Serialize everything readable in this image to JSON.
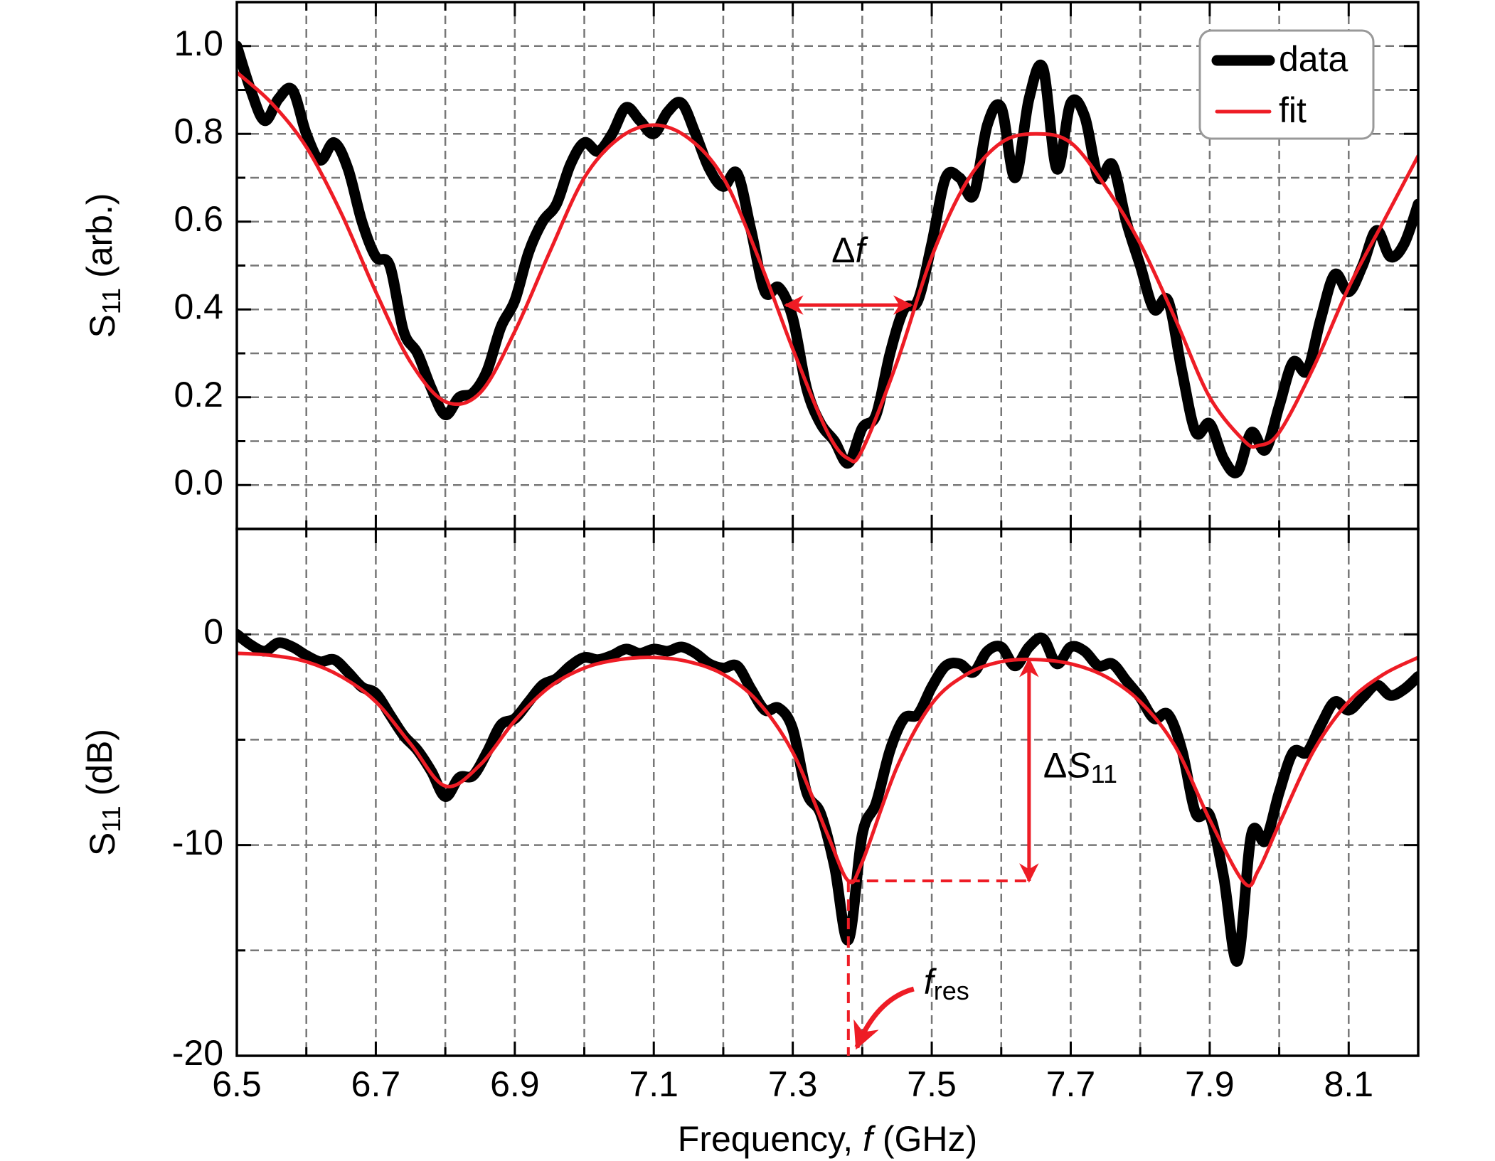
{
  "chart_data": [
    {
      "type": "line",
      "ylabel": [
        {
          "text": "S"
        },
        {
          "text": "11",
          "sub": true
        },
        {
          "text": " (arb.)"
        }
      ],
      "xlim": [
        6.5,
        8.2
      ],
      "xticks": [
        6.5,
        6.7,
        6.9,
        7.1,
        7.3,
        7.5,
        7.7,
        7.9,
        8.1
      ],
      "xminor": [
        6.6,
        6.8,
        7.0,
        7.2,
        7.4,
        7.6,
        7.8,
        8.0
      ],
      "ylim": [
        -0.1,
        1.1
      ],
      "yticks": [
        {
          "value": 0,
          "label": "0.0"
        },
        0.2,
        0.4,
        0.6,
        0.8,
        {
          "value": 1,
          "label": "1.0"
        }
      ],
      "yminor": [
        0.1,
        0.3,
        0.5,
        0.7,
        0.9
      ],
      "grid": true,
      "legend": "upper right",
      "series": [
        {
          "name": "data",
          "color": "#000000",
          "width": 15,
          "x": [
            6.5,
            6.52,
            6.54,
            6.56,
            6.58,
            6.6,
            6.62,
            6.64,
            6.66,
            6.68,
            6.7,
            6.72,
            6.74,
            6.76,
            6.78,
            6.8,
            6.82,
            6.84,
            6.86,
            6.88,
            6.9,
            6.92,
            6.94,
            6.96,
            6.98,
            7.0,
            7.02,
            7.04,
            7.06,
            7.08,
            7.1,
            7.12,
            7.14,
            7.16,
            7.18,
            7.2,
            7.22,
            7.24,
            7.26,
            7.28,
            7.3,
            7.32,
            7.34,
            7.36,
            7.38,
            7.4,
            7.42,
            7.44,
            7.46,
            7.48,
            7.5,
            7.52,
            7.54,
            7.56,
            7.58,
            7.6,
            7.62,
            7.64,
            7.66,
            7.68,
            7.7,
            7.72,
            7.74,
            7.76,
            7.78,
            7.8,
            7.82,
            7.84,
            7.86,
            7.88,
            7.9,
            7.92,
            7.94,
            7.96,
            7.98,
            8.0,
            8.02,
            8.04,
            8.06,
            8.08,
            8.1,
            8.12,
            8.14,
            8.16,
            8.18,
            8.2
          ],
          "values": [
            1,
            0.9,
            0.83,
            0.88,
            0.9,
            0.8,
            0.74,
            0.78,
            0.72,
            0.6,
            0.52,
            0.5,
            0.35,
            0.3,
            0.22,
            0.16,
            0.2,
            0.21,
            0.26,
            0.36,
            0.42,
            0.53,
            0.6,
            0.64,
            0.73,
            0.78,
            0.76,
            0.8,
            0.86,
            0.83,
            0.8,
            0.85,
            0.87,
            0.8,
            0.72,
            0.68,
            0.71,
            0.58,
            0.44,
            0.45,
            0.38,
            0.22,
            0.14,
            0.1,
            0.05,
            0.13,
            0.16,
            0.3,
            0.4,
            0.42,
            0.55,
            0.7,
            0.7,
            0.66,
            0.82,
            0.86,
            0.7,
            0.88,
            0.95,
            0.72,
            0.87,
            0.84,
            0.7,
            0.73,
            0.6,
            0.5,
            0.4,
            0.42,
            0.26,
            0.12,
            0.14,
            0.06,
            0.03,
            0.12,
            0.08,
            0.18,
            0.28,
            0.26,
            0.38,
            0.48,
            0.44,
            0.5,
            0.58,
            0.52,
            0.55,
            0.64
          ]
        },
        {
          "name": "fit",
          "color": "#ee1c25",
          "width": 5,
          "x": [
            6.5,
            6.55,
            6.6,
            6.65,
            6.7,
            6.75,
            6.8,
            6.85,
            6.9,
            6.95,
            7.0,
            7.05,
            7.1,
            7.15,
            7.2,
            7.25,
            7.3,
            7.35,
            7.38,
            7.4,
            7.45,
            7.5,
            7.55,
            7.6,
            7.65,
            7.7,
            7.75,
            7.8,
            7.85,
            7.9,
            7.95,
            7.97,
            8.0,
            8.05,
            8.1,
            8.15,
            8.2
          ],
          "values": [
            0.94,
            0.87,
            0.77,
            0.62,
            0.44,
            0.28,
            0.19,
            0.21,
            0.35,
            0.53,
            0.7,
            0.79,
            0.82,
            0.79,
            0.7,
            0.52,
            0.31,
            0.12,
            0.06,
            0.08,
            0.28,
            0.52,
            0.69,
            0.78,
            0.8,
            0.78,
            0.68,
            0.55,
            0.38,
            0.2,
            0.1,
            0.09,
            0.12,
            0.27,
            0.45,
            0.6,
            0.75
          ]
        }
      ],
      "annotations": [
        {
          "text": [
            {
              "text": "Δ"
            },
            {
              "text": "f",
              "italic": true
            }
          ],
          "x": [
            7.29,
            7.47
          ],
          "y": 0.41
        }
      ]
    },
    {
      "type": "line",
      "ylabel": [
        {
          "text": "S"
        },
        {
          "text": "11",
          "sub": true
        },
        {
          "text": " (dB)"
        }
      ],
      "xlabel": [
        {
          "text": "Frequency, "
        },
        {
          "text": "f",
          "italic": true
        },
        {
          "text": " (GHz)"
        }
      ],
      "xlim": [
        6.5,
        8.2
      ],
      "xticks": [
        6.5,
        6.7,
        6.9,
        7.1,
        7.3,
        7.5,
        7.7,
        7.9,
        8.1
      ],
      "xminor": [
        6.6,
        6.8,
        7.0,
        7.2,
        7.4,
        7.6,
        7.8,
        8.0
      ],
      "ylim": [
        -20,
        5
      ],
      "yticks": [
        -20,
        -10,
        0
      ],
      "yminor": [
        -15,
        -5
      ],
      "grid": true,
      "series": [
        {
          "color": "#000000",
          "width": 15,
          "x": [
            6.5,
            6.52,
            6.54,
            6.56,
            6.58,
            6.6,
            6.62,
            6.64,
            6.66,
            6.68,
            6.7,
            6.72,
            6.74,
            6.76,
            6.78,
            6.8,
            6.82,
            6.84,
            6.86,
            6.88,
            6.9,
            6.92,
            6.94,
            6.96,
            6.98,
            7.0,
            7.02,
            7.04,
            7.06,
            7.08,
            7.1,
            7.12,
            7.14,
            7.16,
            7.18,
            7.2,
            7.22,
            7.24,
            7.26,
            7.28,
            7.3,
            7.32,
            7.34,
            7.36,
            7.38,
            7.4,
            7.42,
            7.44,
            7.46,
            7.48,
            7.5,
            7.52,
            7.54,
            7.56,
            7.58,
            7.6,
            7.62,
            7.64,
            7.66,
            7.68,
            7.7,
            7.72,
            7.74,
            7.76,
            7.78,
            7.8,
            7.82,
            7.84,
            7.86,
            7.88,
            7.9,
            7.92,
            7.94,
            7.96,
            7.98,
            8.0,
            8.02,
            8.04,
            8.06,
            8.08,
            8.1,
            8.12,
            8.14,
            8.16,
            8.18,
            8.2
          ],
          "values": [
            0,
            -0.5,
            -0.8,
            -0.4,
            -0.6,
            -1.0,
            -1.3,
            -1.2,
            -1.8,
            -2.5,
            -2.8,
            -3.8,
            -4.8,
            -5.5,
            -6.5,
            -7.7,
            -6.8,
            -6.7,
            -5.6,
            -4.3,
            -4.0,
            -3.2,
            -2.4,
            -2.1,
            -1.5,
            -1.1,
            -1.2,
            -1.0,
            -0.7,
            -0.9,
            -0.7,
            -0.8,
            -0.6,
            -0.9,
            -1.4,
            -1.6,
            -1.5,
            -2.6,
            -3.6,
            -3.5,
            -4.5,
            -7.5,
            -8.5,
            -11.0,
            -14.5,
            -9.5,
            -8.0,
            -5.5,
            -4.0,
            -3.8,
            -2.5,
            -1.5,
            -1.4,
            -1.8,
            -0.8,
            -0.6,
            -1.5,
            -0.6,
            -0.2,
            -1.4,
            -0.6,
            -0.8,
            -1.5,
            -1.4,
            -2.2,
            -3.0,
            -4.0,
            -3.8,
            -5.5,
            -8.5,
            -8.6,
            -11.5,
            -15.5,
            -9.5,
            -9.8,
            -7.5,
            -5.6,
            -5.6,
            -4.3,
            -3.2,
            -3.6,
            -3.0,
            -2.4,
            -2.9,
            -2.6,
            -2.0
          ]
        },
        {
          "color": "#ee1c25",
          "width": 5,
          "x": [
            6.5,
            6.55,
            6.6,
            6.65,
            6.7,
            6.75,
            6.8,
            6.85,
            6.9,
            6.95,
            7.0,
            7.05,
            7.1,
            7.15,
            7.2,
            7.25,
            7.3,
            7.35,
            7.38,
            7.4,
            7.45,
            7.5,
            7.55,
            7.6,
            7.65,
            7.7,
            7.75,
            7.8,
            7.85,
            7.9,
            7.95,
            7.97,
            8.0,
            8.05,
            8.1,
            8.15,
            8.2
          ],
          "values": [
            -0.9,
            -1.0,
            -1.3,
            -2.0,
            -3.2,
            -5.2,
            -7.2,
            -6.2,
            -4.1,
            -2.5,
            -1.6,
            -1.2,
            -1.1,
            -1.3,
            -1.9,
            -3.2,
            -5.6,
            -9.5,
            -11.7,
            -10.8,
            -6.3,
            -3.3,
            -1.9,
            -1.3,
            -1.2,
            -1.4,
            -2.0,
            -3.2,
            -5.3,
            -8.8,
            -11.8,
            -11.2,
            -9.0,
            -5.5,
            -3.2,
            -1.9,
            -1.1
          ]
        }
      ],
      "annotations": [
        {
          "text": [
            {
              "text": "Δ"
            },
            {
              "text": "S",
              "italic": true
            },
            {
              "text": "11",
              "sub": true
            }
          ],
          "x": 7.64,
          "y": [
            -1.2,
            -11.7
          ]
        },
        {
          "text": [
            {
              "text": "f",
              "italic": true
            },
            {
              "text": "res",
              "sub": true
            }
          ],
          "x": 7.38,
          "y": -20
        }
      ],
      "guides": [
        {
          "x": [
            7.38,
            7.64
          ],
          "y": -11.7
        },
        {
          "x": 7.38,
          "y": [
            -11.7,
            -20
          ]
        }
      ]
    }
  ]
}
